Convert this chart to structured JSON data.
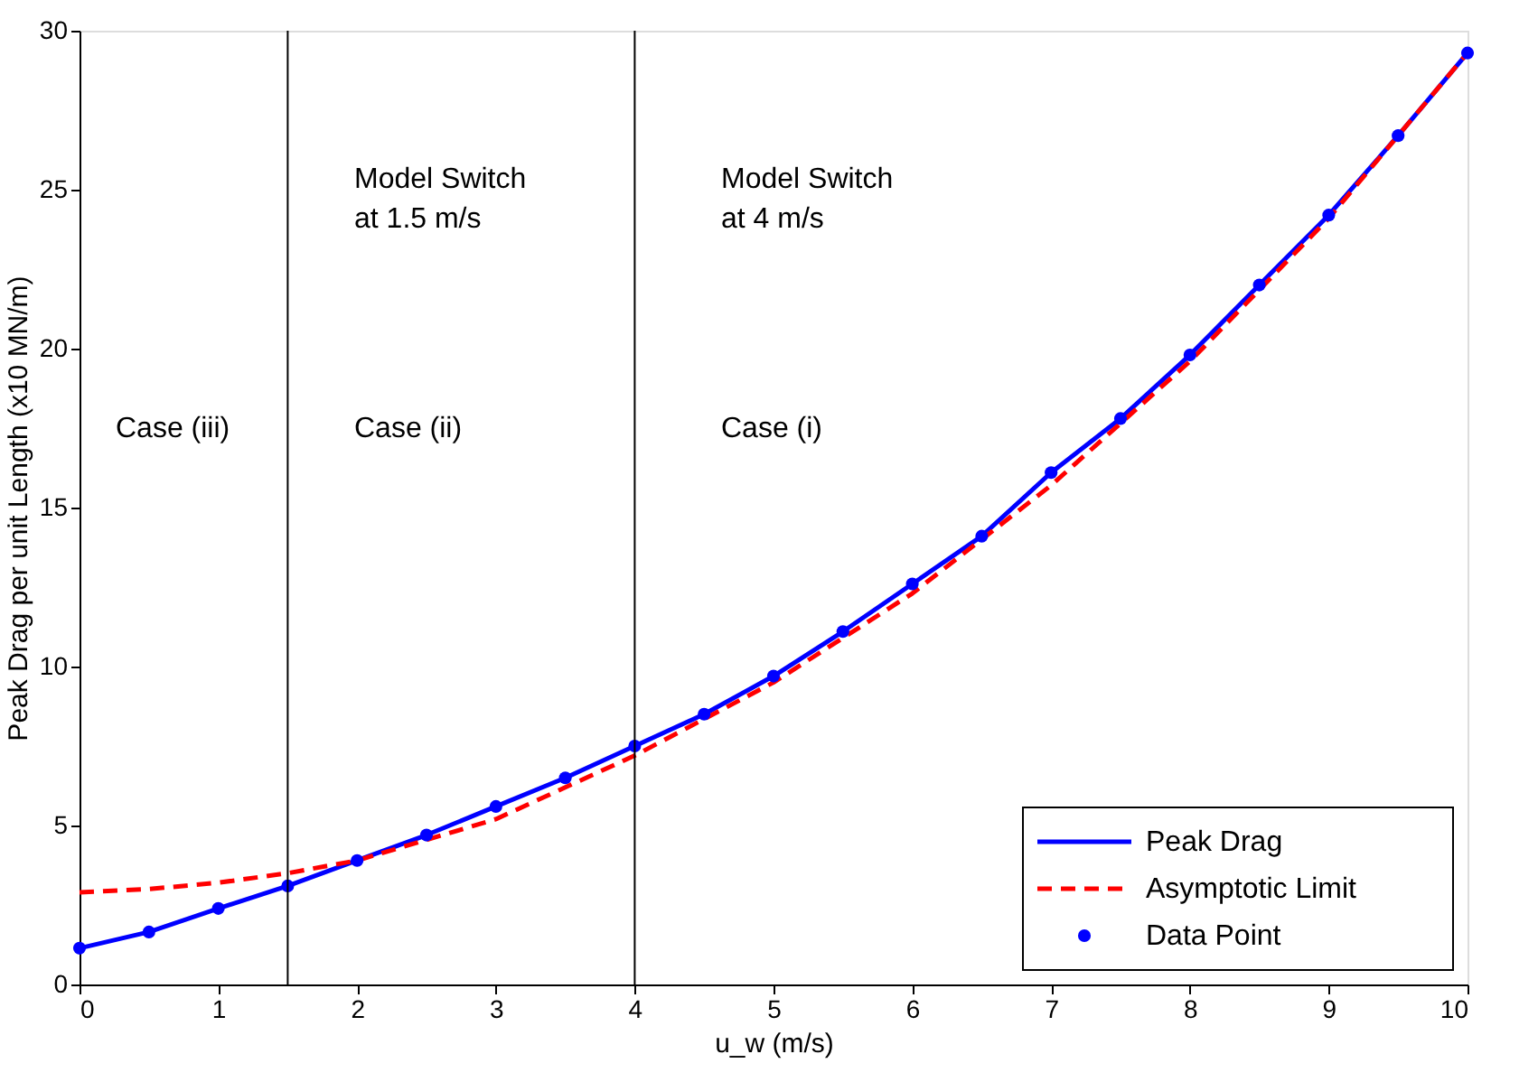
{
  "chart_data": {
    "type": "line",
    "xlabel": "u_w (m/s)",
    "ylabel": "Peak Drag per unit Length (x10 MN/m)",
    "xlim": [
      0,
      10
    ],
    "xticks": [
      0,
      1,
      2,
      3,
      4,
      5,
      6,
      7,
      8,
      9,
      10
    ],
    "ylim": [
      0,
      30
    ],
    "yticks": [
      0,
      5,
      10,
      15,
      20,
      25,
      30
    ],
    "grid": false,
    "legend": "bottom right",
    "series": [
      {
        "name": "Peak Drag",
        "color": "#0000ff",
        "line_style": "solid",
        "marker": "none",
        "x": [
          0,
          0.5,
          1,
          1.5,
          2,
          2.5,
          3,
          3.5,
          4,
          4.5,
          5,
          5.5,
          6,
          6.5,
          7,
          7.5,
          8,
          8.5,
          9,
          9.5,
          10
        ],
        "values": [
          1.14,
          1.65,
          2.39,
          3.1,
          3.9,
          4.7,
          5.6,
          6.5,
          7.5,
          8.5,
          9.7,
          11.1,
          12.6,
          14.1,
          16.1,
          17.8,
          19.8,
          22.0,
          24.2,
          26.7,
          29.3
        ]
      },
      {
        "name": "Asymptotic Limit",
        "type": "line",
        "color": "#ff0000",
        "line_style": "dashed",
        "marker": "none",
        "x": [
          0,
          0.5,
          1,
          1.5,
          2,
          3,
          4,
          5,
          6,
          7,
          8,
          9,
          10
        ],
        "values": [
          2.9,
          3.0,
          3.2,
          3.5,
          3.9,
          5.2,
          7.2,
          9.5,
          12.3,
          15.7,
          19.6,
          24.1,
          29.3
        ]
      },
      {
        "name": "Data Point",
        "type": "scatter",
        "color": "#0000ff",
        "marker": "circle",
        "x": [
          0,
          0.5,
          1,
          1.5,
          2,
          2.5,
          3,
          3.5,
          4,
          4.5,
          5,
          5.5,
          6,
          6.5,
          7,
          7.5,
          8,
          8.5,
          9,
          9.5,
          10
        ],
        "values": [
          1.14,
          1.65,
          2.39,
          3.1,
          3.9,
          4.7,
          5.6,
          6.5,
          7.5,
          8.5,
          9.7,
          11.1,
          12.6,
          14.1,
          16.1,
          17.8,
          19.8,
          22.0,
          24.2,
          26.7,
          29.3
        ]
      }
    ],
    "ref_lines": [
      {
        "axis": "x",
        "value": 1.5,
        "color": "#000000"
      },
      {
        "axis": "x",
        "value": 4,
        "color": "#000000"
      }
    ],
    "annotations": [
      "Case (iii)",
      "Case (ii)",
      "Model Switch\nat 1.5 m/s",
      "Case (i)",
      "Model Switch\nat 4 m/s"
    ]
  }
}
